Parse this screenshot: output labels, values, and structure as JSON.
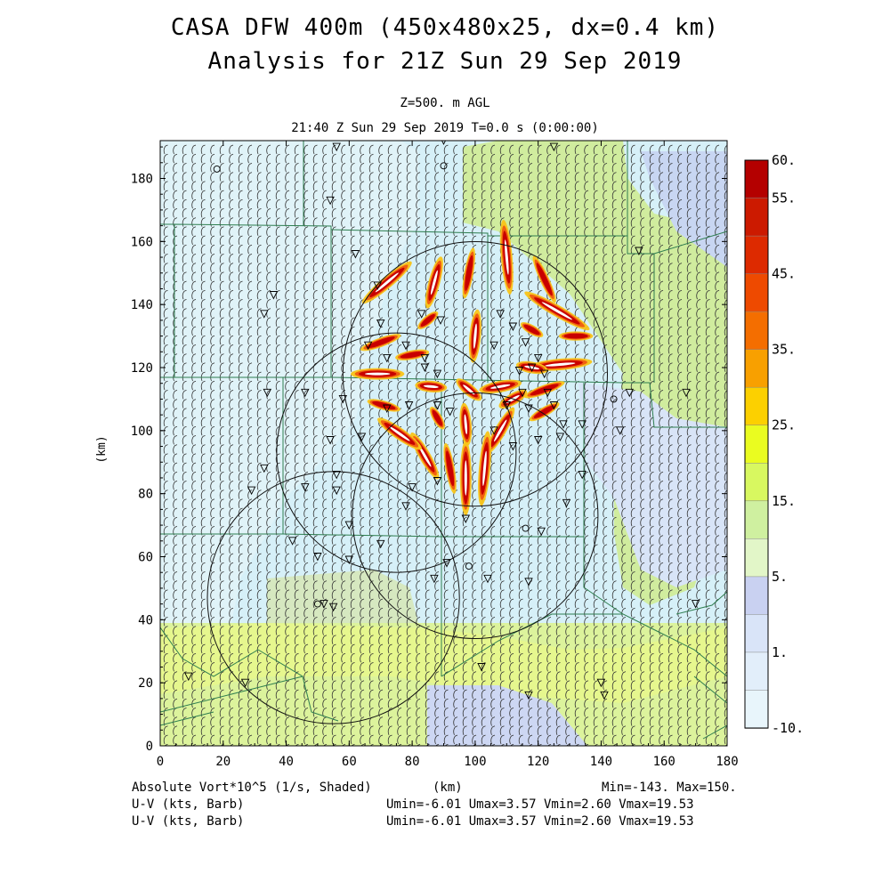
{
  "header": {
    "title1": "CASA DFW 400m (450x480x25, dx=0.4 km)",
    "title2": "Analysis for 21Z Sun 29 Sep 2019",
    "level": "Z=500. m AGL",
    "time": "21:40 Z Sun 29 Sep 2019    T=0.0 s (0:00:00)"
  },
  "footer": {
    "field1": "Absolute Vort*10^5 (1/s, Shaded)",
    "xunit": "(km)",
    "minmax": "Min=-143. Max=150.",
    "barb1": "U-V (kts, Barb)",
    "barb2": "U-V (kts, Barb)",
    "uv1": "Umin=-6.01 Umax=3.57 Vmin=2.60 Vmax=19.53",
    "uv2": "Umin=-6.01 Umax=3.57 Vmin=2.60 Vmax=19.53"
  },
  "colors": {
    "background_field": "#d6f0f8",
    "low_field": "#c8d6f2",
    "green_field": "#cdeea0",
    "yellow_green_field": "#e3f58c",
    "county_lines": "#2e7d4f"
  },
  "chart_data": {
    "type": "heatmap",
    "xlabel": "",
    "ylabel": "(km)",
    "xlim": [
      0,
      180
    ],
    "ylim": [
      0,
      192
    ],
    "xticks": [
      "0",
      "20",
      "40",
      "60",
      "80",
      "100",
      "120",
      "140",
      "160",
      "180"
    ],
    "yticks": [
      "0",
      "20",
      "40",
      "60",
      "80",
      "100",
      "120",
      "140",
      "160",
      "180"
    ],
    "colorbar": {
      "labels": [
        "60.",
        "55.",
        "45.",
        "35.",
        "25.",
        "15.",
        "5.",
        "1.",
        "-10."
      ],
      "colors": [
        "#b40000",
        "#cc1a00",
        "#dd2a00",
        "#ee4a00",
        "#f46e00",
        "#f8a000",
        "#fcd000",
        "#eafc20",
        "#d8f860",
        "#cff0a0",
        "#e2f6c8",
        "#c9d1f1",
        "#d9e4f8",
        "#e2eefa",
        "#e8f5fb"
      ]
    },
    "radar_rings": [
      {
        "center": [
          100,
          118
        ],
        "radius": 42
      },
      {
        "center": [
          75,
          93
        ],
        "radius": 38
      },
      {
        "center": [
          100,
          73
        ],
        "radius": 39
      },
      {
        "center": [
          55,
          47
        ],
        "radius": 40
      }
    ],
    "vortices": [
      {
        "x": 72,
        "y": 147,
        "angle": -40,
        "length": 12,
        "intensity": "high"
      },
      {
        "x": 87,
        "y": 147,
        "angle": -75,
        "length": 10,
        "intensity": "high"
      },
      {
        "x": 98,
        "y": 150,
        "angle": -80,
        "length": 12,
        "intensity": "med"
      },
      {
        "x": 110,
        "y": 155,
        "angle": -95,
        "length": 14,
        "intensity": "high"
      },
      {
        "x": 122,
        "y": 148,
        "angle": -115,
        "length": 12,
        "intensity": "med"
      },
      {
        "x": 126,
        "y": 138,
        "angle": -150,
        "length": 14,
        "intensity": "high"
      },
      {
        "x": 132,
        "y": 130,
        "angle": 180,
        "length": 8,
        "intensity": "med"
      },
      {
        "x": 127,
        "y": 121,
        "angle": 175,
        "length": 12,
        "intensity": "high"
      },
      {
        "x": 122,
        "y": 113,
        "angle": 160,
        "length": 10,
        "intensity": "med"
      },
      {
        "x": 122,
        "y": 106,
        "angle": 150,
        "length": 8,
        "intensity": "med"
      },
      {
        "x": 108,
        "y": 100,
        "angle": 120,
        "length": 10,
        "intensity": "high"
      },
      {
        "x": 103,
        "y": 88,
        "angle": 95,
        "length": 14,
        "intensity": "high"
      },
      {
        "x": 97,
        "y": 85,
        "angle": 90,
        "length": 14,
        "intensity": "high"
      },
      {
        "x": 92,
        "y": 88,
        "angle": 80,
        "length": 12,
        "intensity": "med"
      },
      {
        "x": 84,
        "y": 92,
        "angle": 60,
        "length": 10,
        "intensity": "high"
      },
      {
        "x": 76,
        "y": 99,
        "angle": 35,
        "length": 10,
        "intensity": "high"
      },
      {
        "x": 71,
        "y": 108,
        "angle": 15,
        "length": 8,
        "intensity": "med"
      },
      {
        "x": 69,
        "y": 118,
        "angle": 0,
        "length": 10,
        "intensity": "high"
      },
      {
        "x": 70,
        "y": 128,
        "angle": -20,
        "length": 10,
        "intensity": "med"
      },
      {
        "x": 80,
        "y": 124,
        "angle": -10,
        "length": 8,
        "intensity": "med"
      },
      {
        "x": 86,
        "y": 114,
        "angle": 5,
        "length": 6,
        "intensity": "high"
      },
      {
        "x": 98,
        "y": 113,
        "angle": 40,
        "length": 6,
        "intensity": "high"
      },
      {
        "x": 108,
        "y": 114,
        "angle": 170,
        "length": 8,
        "intensity": "high"
      },
      {
        "x": 112,
        "y": 110,
        "angle": 150,
        "length": 6,
        "intensity": "high"
      },
      {
        "x": 100,
        "y": 130,
        "angle": -85,
        "length": 10,
        "intensity": "high"
      },
      {
        "x": 97,
        "y": 102,
        "angle": 85,
        "length": 8,
        "intensity": "high"
      },
      {
        "x": 88,
        "y": 104,
        "angle": 60,
        "length": 6,
        "intensity": "med"
      },
      {
        "x": 118,
        "y": 120,
        "angle": 190,
        "length": 6,
        "intensity": "high"
      },
      {
        "x": 85,
        "y": 135,
        "angle": -40,
        "length": 6,
        "intensity": "med"
      },
      {
        "x": 118,
        "y": 132,
        "angle": -150,
        "length": 6,
        "intensity": "med"
      }
    ],
    "stations_triangle": [
      [
        56,
        190
      ],
      [
        90,
        192
      ],
      [
        125,
        190
      ],
      [
        54,
        173
      ],
      [
        62,
        156
      ],
      [
        36,
        143
      ],
      [
        33,
        137
      ],
      [
        69,
        146
      ],
      [
        70,
        134
      ],
      [
        83,
        137
      ],
      [
        89,
        135
      ],
      [
        108,
        137
      ],
      [
        112,
        133
      ],
      [
        106,
        127
      ],
      [
        116,
        128
      ],
      [
        120,
        123
      ],
      [
        66,
        127
      ],
      [
        72,
        123
      ],
      [
        78,
        127
      ],
      [
        84,
        123
      ],
      [
        84,
        120
      ],
      [
        88,
        118
      ],
      [
        114,
        119
      ],
      [
        118,
        120
      ],
      [
        122,
        118
      ],
      [
        123,
        112
      ],
      [
        115,
        112
      ],
      [
        110,
        108
      ],
      [
        106,
        100
      ],
      [
        117,
        107
      ],
      [
        125,
        108
      ],
      [
        34,
        112
      ],
      [
        46,
        112
      ],
      [
        58,
        110
      ],
      [
        54,
        97
      ],
      [
        64,
        98
      ],
      [
        72,
        107
      ],
      [
        79,
        108
      ],
      [
        88,
        108
      ],
      [
        92,
        106
      ],
      [
        112,
        95
      ],
      [
        120,
        97
      ],
      [
        127,
        98
      ],
      [
        128,
        102
      ],
      [
        134,
        102
      ],
      [
        149,
        112
      ],
      [
        167,
        112
      ],
      [
        152,
        157
      ],
      [
        146,
        100
      ],
      [
        33,
        88
      ],
      [
        29,
        81
      ],
      [
        46,
        82
      ],
      [
        56,
        81
      ],
      [
        56,
        86
      ],
      [
        60,
        70
      ],
      [
        80,
        82
      ],
      [
        78,
        76
      ],
      [
        88,
        84
      ],
      [
        97,
        72
      ],
      [
        91,
        58
      ],
      [
        104,
        53
      ],
      [
        117,
        52
      ],
      [
        121,
        68
      ],
      [
        129,
        77
      ],
      [
        134,
        86
      ],
      [
        42,
        65
      ],
      [
        50,
        60
      ],
      [
        60,
        59
      ],
      [
        70,
        64
      ],
      [
        87,
        53
      ],
      [
        52,
        45
      ],
      [
        55,
        44
      ],
      [
        9,
        22
      ],
      [
        27,
        20
      ],
      [
        102,
        25
      ],
      [
        117,
        16
      ],
      [
        140,
        20
      ],
      [
        141,
        16
      ],
      [
        170,
        45
      ]
    ],
    "stations_circle": [
      [
        18,
        183
      ],
      [
        90,
        184
      ],
      [
        144,
        110
      ],
      [
        116,
        69
      ],
      [
        98,
        57
      ],
      [
        50,
        45
      ]
    ]
  }
}
